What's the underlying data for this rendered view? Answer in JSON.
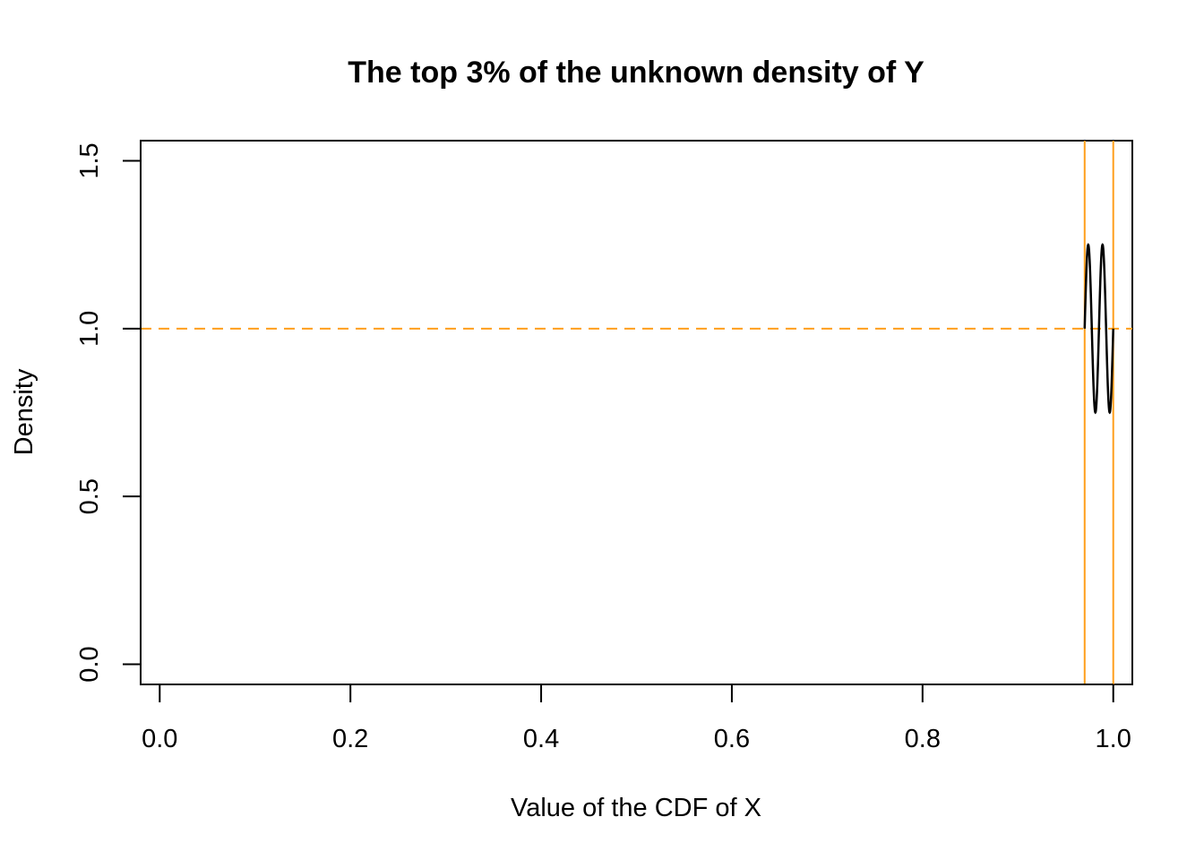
{
  "chart_data": {
    "type": "line",
    "title": "The top 3% of the unknown density of Y",
    "xlabel": "Value of the CDF of X",
    "ylabel": "Density",
    "xlim": [
      -0.02,
      1.02
    ],
    "ylim": [
      -0.06,
      1.56
    ],
    "xticks": [
      0.0,
      0.2,
      0.4,
      0.6,
      0.8,
      1.0
    ],
    "xtick_labels": [
      "0.0",
      "0.2",
      "0.4",
      "0.6",
      "0.8",
      "1.0"
    ],
    "yticks": [
      0.0,
      0.5,
      1.0,
      1.5
    ],
    "ytick_labels": [
      "0.0",
      "0.5",
      "1.0",
      "1.5"
    ],
    "grid": false,
    "series": [
      {
        "color": "#000000",
        "x": [
          0.97,
          0.9725,
          0.975,
          0.9775,
          0.98,
          0.9825,
          0.985,
          0.9875,
          0.99,
          0.9925,
          0.995,
          0.9975,
          1.0
        ],
        "y": [
          1.0,
          1.177,
          1.25,
          1.177,
          1.0,
          0.823,
          0.75,
          0.823,
          1.0,
          1.177,
          1.25,
          1.177,
          1.0
        ]
      }
    ],
    "reference_lines": [
      {
        "orientation": "horizontal",
        "value": 1.0,
        "style": "dashed",
        "color": "#FF9F1C"
      },
      {
        "orientation": "vertical",
        "value": 0.97,
        "style": "solid",
        "color": "#FF9F1C"
      },
      {
        "orientation": "vertical",
        "value": 1.0,
        "style": "solid",
        "color": "#FF9F1C"
      }
    ]
  }
}
